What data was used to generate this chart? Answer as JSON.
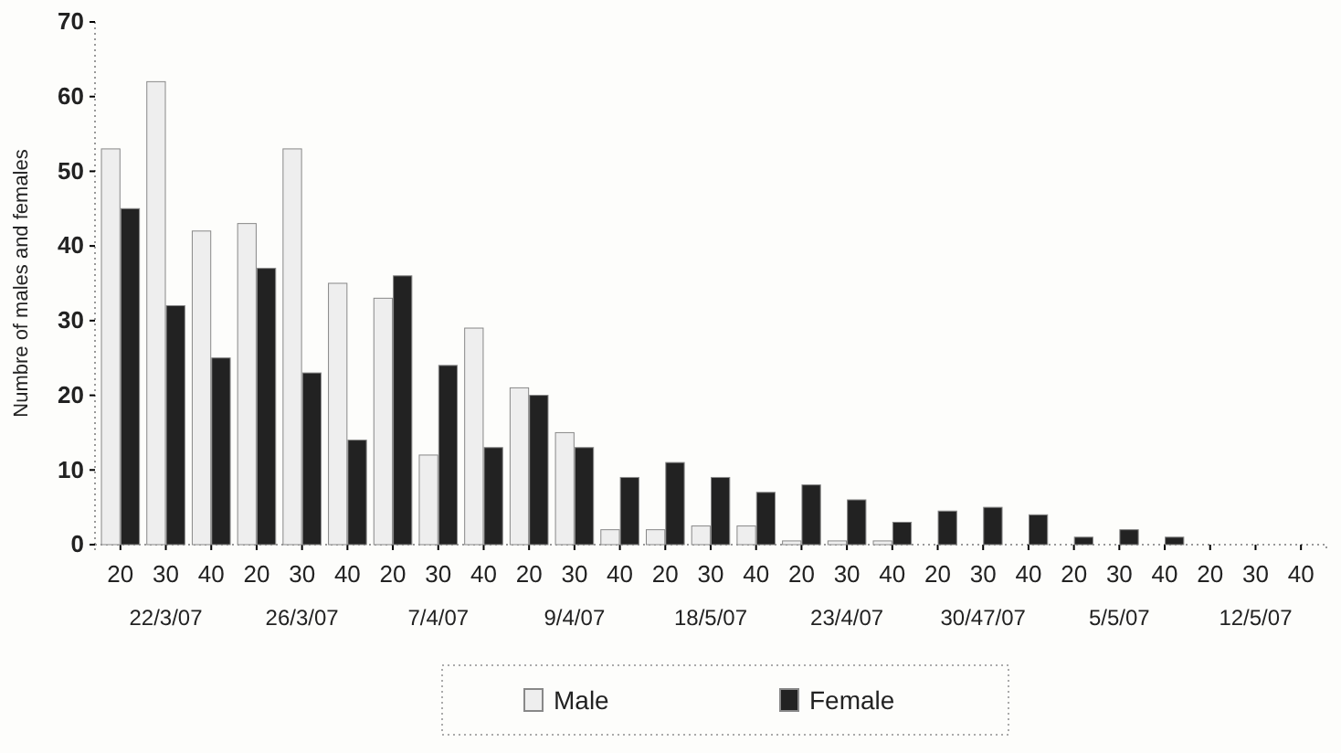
{
  "chart_data": {
    "type": "bar",
    "ylabel": "Numbre of males and females",
    "categories": [
      "20",
      "30",
      "40",
      "20",
      "30",
      "40",
      "20",
      "30",
      "40",
      "20",
      "30",
      "40",
      "20",
      "30",
      "40",
      "20",
      "30",
      "40",
      "20",
      "30",
      "40",
      "20",
      "30",
      "40",
      "20",
      "30",
      "40"
    ],
    "series": [
      {
        "name": "Male",
        "color": "#eeeeee",
        "values": [
          53,
          62,
          42,
          43,
          53,
          35,
          33,
          12,
          29,
          21,
          15,
          2,
          2,
          2.5,
          2.5,
          0.5,
          0.5,
          0.5,
          0,
          0,
          0,
          0,
          0,
          0,
          0,
          0,
          0
        ]
      },
      {
        "name": "Female",
        "color": "#222222",
        "values": [
          45,
          32,
          25,
          37,
          23,
          14,
          36,
          24,
          13,
          20,
          13,
          9,
          11,
          9,
          7,
          8,
          6,
          3,
          4.5,
          5,
          4,
          1,
          2,
          1,
          0,
          0,
          0
        ]
      }
    ],
    "annotations": [
      "22/3/07",
      "26/3/07",
      "7/4/07",
      "9/4/07",
      "18/5/07",
      "23/4/07",
      "30/47/07",
      "5/5/07",
      "12/5/07"
    ],
    "ylim": [
      0,
      70
    ],
    "yticks": [
      0,
      10,
      20,
      30,
      40,
      50,
      60,
      70
    ],
    "legend": "bottom"
  }
}
